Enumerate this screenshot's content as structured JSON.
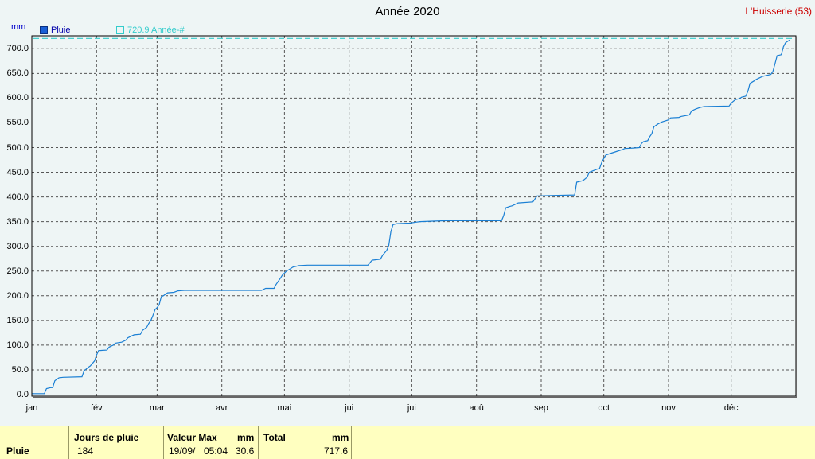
{
  "header": {
    "title": "Année 2020",
    "station": "L'Huisserie (53)",
    "unit": "mm"
  },
  "legend": [
    {
      "label": "Pluie",
      "color": "#1a5fd6",
      "style": "solid"
    },
    {
      "label": "720.9 Année-#",
      "color": "#33cccc",
      "style": "dashed"
    }
  ],
  "chart_data": {
    "type": "line",
    "title": "Année 2020",
    "ylabel": "mm",
    "xlabel": "",
    "ylim": [
      0,
      720
    ],
    "xlim": [
      0,
      366
    ],
    "grid": true,
    "legend_position": "top-left",
    "y_ticks": [
      "0.0",
      "50.0",
      "100.0",
      "150.0",
      "200.0",
      "250.0",
      "300.0",
      "350.0",
      "400.0",
      "450.0",
      "500.0",
      "550.0",
      "600.0",
      "650.0",
      "700.0"
    ],
    "x_ticks": [
      {
        "label": "jan",
        "day": 0
      },
      {
        "label": "fév",
        "day": 31
      },
      {
        "label": "mar",
        "day": 60
      },
      {
        "label": "avr",
        "day": 91
      },
      {
        "label": "mai",
        "day": 121
      },
      {
        "label": "jui",
        "day": 152
      },
      {
        "label": "jui",
        "day": 182
      },
      {
        "label": "aoû",
        "day": 213
      },
      {
        "label": "sep",
        "day": 244
      },
      {
        "label": "oct",
        "day": 274
      },
      {
        "label": "nov",
        "day": 305
      },
      {
        "label": "déc",
        "day": 335
      }
    ],
    "series": [
      {
        "name": "Pluie",
        "color": "#1a7fd4",
        "points": [
          [
            0,
            2
          ],
          [
            6,
            2
          ],
          [
            7,
            12
          ],
          [
            9,
            14
          ],
          [
            10,
            14
          ],
          [
            11,
            28
          ],
          [
            13,
            34
          ],
          [
            15,
            35
          ],
          [
            24,
            36
          ],
          [
            25,
            48
          ],
          [
            27,
            55
          ],
          [
            28,
            58
          ],
          [
            30,
            68
          ],
          [
            31,
            80
          ],
          [
            32,
            89
          ],
          [
            36,
            90
          ],
          [
            37,
            96
          ],
          [
            39,
            100
          ],
          [
            40,
            104
          ],
          [
            43,
            106
          ],
          [
            45,
            110
          ],
          [
            46,
            115
          ],
          [
            47,
            117
          ],
          [
            49,
            121
          ],
          [
            52,
            122
          ],
          [
            53,
            130
          ],
          [
            55,
            136
          ],
          [
            56,
            144
          ],
          [
            57,
            150
          ],
          [
            58,
            160
          ],
          [
            59,
            172
          ],
          [
            60,
            176
          ],
          [
            61,
            182
          ],
          [
            62,
            198
          ],
          [
            63,
            200
          ],
          [
            65,
            206
          ],
          [
            68,
            207
          ],
          [
            70,
            210
          ],
          [
            73,
            211
          ],
          [
            110,
            211
          ],
          [
            112,
            215
          ],
          [
            116,
            215
          ],
          [
            117,
            223
          ],
          [
            119,
            235
          ],
          [
            120,
            242
          ],
          [
            122,
            250
          ],
          [
            124,
            255
          ],
          [
            125,
            258
          ],
          [
            128,
            261
          ],
          [
            132,
            262
          ],
          [
            161,
            262
          ],
          [
            163,
            272
          ],
          [
            167,
            274
          ],
          [
            168,
            282
          ],
          [
            170,
            292
          ],
          [
            171,
            302
          ],
          [
            172,
            330
          ],
          [
            173,
            344
          ],
          [
            175,
            346
          ],
          [
            181,
            347
          ],
          [
            184,
            349
          ],
          [
            186,
            350
          ],
          [
            192,
            351
          ],
          [
            199,
            352
          ],
          [
            225,
            352
          ],
          [
            226,
            362
          ],
          [
            227,
            378
          ],
          [
            229,
            381
          ],
          [
            230,
            382
          ],
          [
            233,
            388
          ],
          [
            240,
            390
          ],
          [
            241,
            396
          ],
          [
            242,
            402
          ],
          [
            250,
            403
          ],
          [
            260,
            404
          ],
          [
            261,
            430
          ],
          [
            264,
            433
          ],
          [
            266,
            440
          ],
          [
            267,
            450
          ],
          [
            270,
            455
          ],
          [
            272,
            458
          ],
          [
            273,
            470
          ],
          [
            274,
            478
          ],
          [
            275,
            485
          ],
          [
            277,
            488
          ],
          [
            280,
            492
          ],
          [
            283,
            496
          ],
          [
            284,
            498
          ],
          [
            288,
            499
          ],
          [
            291,
            500
          ],
          [
            292,
            508
          ],
          [
            293,
            512
          ],
          [
            295,
            514
          ],
          [
            296,
            522
          ],
          [
            297,
            528
          ],
          [
            298,
            542
          ],
          [
            300,
            548
          ],
          [
            302,
            552
          ],
          [
            305,
            556
          ],
          [
            306,
            560
          ],
          [
            310,
            561
          ],
          [
            311,
            563
          ],
          [
            315,
            566
          ],
          [
            316,
            574
          ],
          [
            318,
            578
          ],
          [
            320,
            581
          ],
          [
            322,
            583
          ],
          [
            334,
            584
          ],
          [
            335,
            590
          ],
          [
            337,
            597
          ],
          [
            339,
            599
          ],
          [
            340,
            602
          ],
          [
            342,
            604
          ],
          [
            343,
            614
          ],
          [
            344,
            630
          ],
          [
            346,
            635
          ],
          [
            347,
            638
          ],
          [
            350,
            644
          ],
          [
            354,
            648
          ],
          [
            355,
            654
          ],
          [
            356,
            670
          ],
          [
            357,
            686
          ],
          [
            359,
            688
          ],
          [
            360,
            704
          ],
          [
            361,
            712
          ],
          [
            362,
            715
          ],
          [
            363,
            717.6
          ]
        ]
      },
      {
        "name": "720.9 Année-#",
        "color": "#33cccc",
        "style": "dashed",
        "value": 720.9
      }
    ]
  },
  "stats": {
    "row_label": "Pluie",
    "jours_header": "Jours de pluie",
    "jours_value": "184",
    "valmax_header": "Valeur Max",
    "valmax_unit": "mm",
    "valmax_date": "19/09/",
    "valmax_time": "05:04",
    "valmax_value": "30.6",
    "total_header": "Total",
    "total_unit": "mm",
    "total_value": "717.6"
  }
}
